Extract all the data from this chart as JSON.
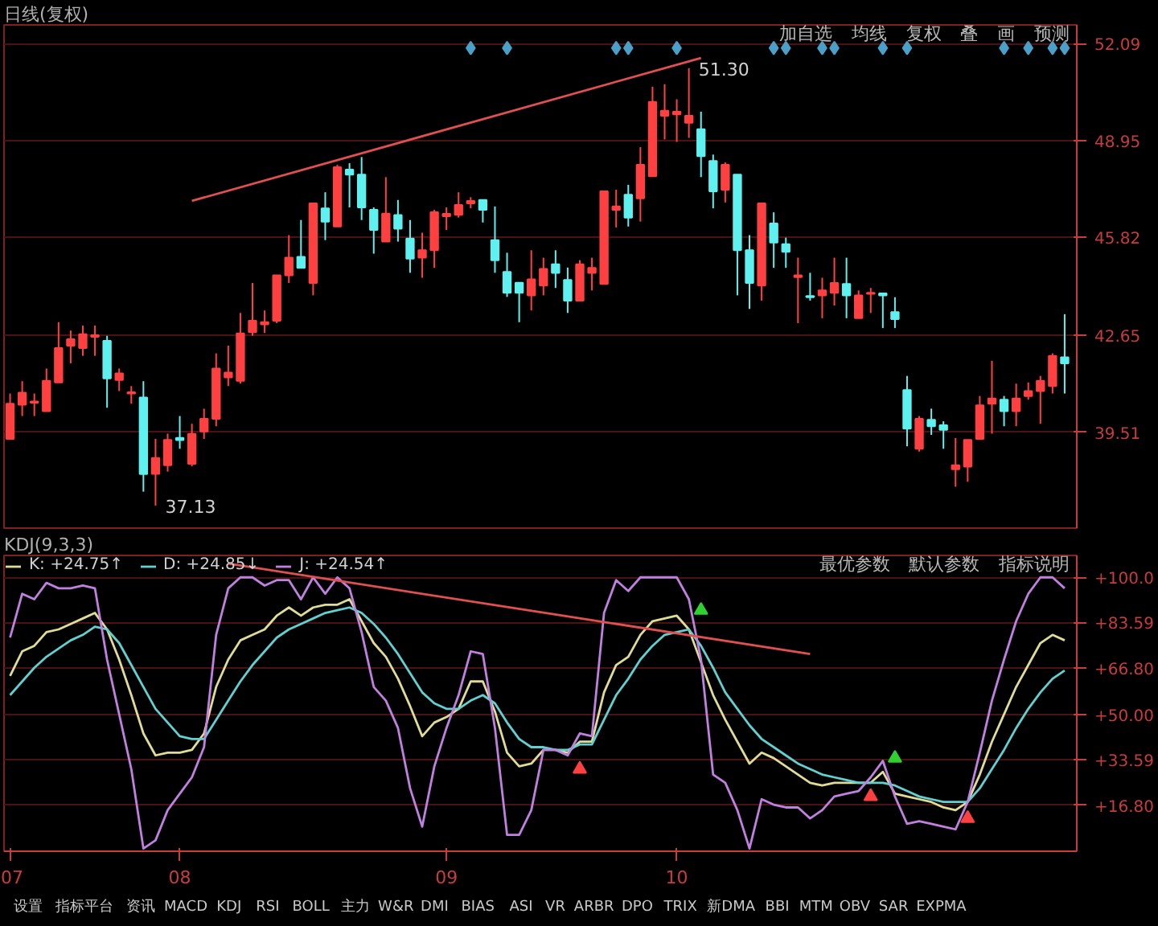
{
  "chart_data": [
    {
      "type": "candlestick",
      "title": "日线(复权)",
      "categories": [
        null,
        null,
        null,
        null,
        null,
        null,
        null,
        null,
        null,
        null,
        null,
        null,
        null,
        null,
        null,
        null,
        null,
        null,
        null,
        null,
        null,
        null,
        null,
        null,
        null,
        null,
        null,
        null,
        null,
        null,
        null,
        null,
        null,
        null,
        null,
        null,
        null,
        null,
        null,
        null,
        null,
        null,
        null,
        null,
        null,
        null,
        null,
        null,
        null,
        null,
        null,
        null,
        null,
        null,
        null,
        null,
        null,
        null,
        null,
        null,
        null,
        null,
        null,
        null,
        null,
        null,
        null,
        null,
        null,
        null,
        null,
        null,
        null,
        null,
        null,
        null,
        null,
        null,
        null,
        null,
        null,
        null,
        null,
        null,
        null,
        null,
        null,
        null
      ],
      "ohlc": [
        [
          39.29,
          40.76,
          39.29,
          40.43
        ],
        [
          40.4,
          41.16,
          40.03,
          40.79
        ],
        [
          40.46,
          40.76,
          40.03,
          40.5
        ],
        [
          40.19,
          41.57,
          40.19,
          41.17
        ],
        [
          41.12,
          43.07,
          41.12,
          42.23
        ],
        [
          42.31,
          42.8,
          41.74,
          42.52
        ],
        [
          42.23,
          42.96,
          41.98,
          42.68
        ],
        [
          42.6,
          42.96,
          41.98,
          42.65
        ],
        [
          42.47,
          42.63,
          40.3,
          41.25
        ],
        [
          41.2,
          41.57,
          40.84,
          41.41
        ],
        [
          40.76,
          41.0,
          40.43,
          40.8
        ],
        [
          40.63,
          41.16,
          37.58,
          38.15
        ],
        [
          38.16,
          39.29,
          37.13,
          38.67
        ],
        [
          38.44,
          39.46,
          38.23,
          39.26
        ],
        [
          39.32,
          40.03,
          38.97,
          39.25
        ],
        [
          38.48,
          39.78,
          38.4,
          39.45
        ],
        [
          39.53,
          40.27,
          39.29,
          39.94
        ],
        [
          39.94,
          42.06,
          39.7,
          41.57
        ],
        [
          41.28,
          42.31,
          41.0,
          41.44
        ],
        [
          41.17,
          43.37,
          41.08,
          42.71
        ],
        [
          42.75,
          44.34,
          42.63,
          43.12
        ],
        [
          43.0,
          43.45,
          42.72,
          43.07
        ],
        [
          43.12,
          44.59,
          43.04,
          44.59
        ],
        [
          44.59,
          45.89,
          44.34,
          45.16
        ],
        [
          45.19,
          46.38,
          44.83,
          44.83
        ],
        [
          44.34,
          46.92,
          43.94,
          46.92
        ],
        [
          46.76,
          47.28,
          45.73,
          46.33
        ],
        [
          46.17,
          48.17,
          46.17,
          48.09
        ],
        [
          48.01,
          48.22,
          46.79,
          47.85
        ],
        [
          47.85,
          48.42,
          46.38,
          46.79
        ],
        [
          46.71,
          46.79,
          45.29,
          46.06
        ],
        [
          45.68,
          47.77,
          45.68,
          46.59
        ],
        [
          46.54,
          47.03,
          45.68,
          46.1
        ],
        [
          45.78,
          46.38,
          44.67,
          45.13
        ],
        [
          45.16,
          45.97,
          44.51,
          45.4
        ],
        [
          45.4,
          46.71,
          44.83,
          46.63
        ],
        [
          46.5,
          46.79,
          46.06,
          46.58
        ],
        [
          46.55,
          47.28,
          46.46,
          46.87
        ],
        [
          46.92,
          47.12,
          46.76,
          47.0
        ],
        [
          47.03,
          47.03,
          46.3,
          46.71
        ],
        [
          45.73,
          46.82,
          44.67,
          45.08
        ],
        [
          44.7,
          45.32,
          43.89,
          44.02
        ],
        [
          44.35,
          44.35,
          43.07,
          44.02
        ],
        [
          43.94,
          45.4,
          43.45,
          44.46
        ],
        [
          44.26,
          45.16,
          43.94,
          44.8
        ],
        [
          44.95,
          45.4,
          44.18,
          44.67
        ],
        [
          44.44,
          44.84,
          43.37,
          43.77
        ],
        [
          43.77,
          45.08,
          43.77,
          44.95
        ],
        [
          44.67,
          45.16,
          44.1,
          44.83
        ],
        [
          44.31,
          47.31,
          44.31,
          47.31
        ],
        [
          46.71,
          47.36,
          46.14,
          46.82
        ],
        [
          47.2,
          47.52,
          46.17,
          46.46
        ],
        [
          47.08,
          48.74,
          46.33,
          48.17
        ],
        [
          47.8,
          50.7,
          47.8,
          50.21
        ],
        [
          49.76,
          50.78,
          48.99,
          49.92
        ],
        [
          49.8,
          50.29,
          48.91,
          49.89
        ],
        [
          49.53,
          51.3,
          49.04,
          49.76
        ],
        [
          49.32,
          49.89,
          47.77,
          48.45
        ],
        [
          48.29,
          48.5,
          46.76,
          47.31
        ],
        [
          47.36,
          48.25,
          46.95,
          48.17
        ],
        [
          47.85,
          47.85,
          43.94,
          45.4
        ],
        [
          45.4,
          45.89,
          43.5,
          44.34
        ],
        [
          44.26,
          46.92,
          43.77,
          46.92
        ],
        [
          46.27,
          46.63,
          44.83,
          45.65
        ],
        [
          45.6,
          45.81,
          44.83,
          45.35
        ],
        [
          44.53,
          45.16,
          43.04,
          44.59
        ],
        [
          43.92,
          44.67,
          43.77,
          43.88
        ],
        [
          43.94,
          44.51,
          43.2,
          44.1
        ],
        [
          44.02,
          45.16,
          43.61,
          44.34
        ],
        [
          44.31,
          45.16,
          43.2,
          43.94
        ],
        [
          43.2,
          44.1,
          43.2,
          43.94
        ],
        [
          43.99,
          44.18,
          43.37,
          44.02
        ],
        [
          44.0,
          44.02,
          42.88,
          43.94
        ],
        [
          43.4,
          43.88,
          42.88,
          43.17
        ],
        [
          40.87,
          41.33,
          39.05,
          39.62
        ],
        [
          38.97,
          40.03,
          38.88,
          39.94
        ],
        [
          39.91,
          40.27,
          39.42,
          39.7
        ],
        [
          39.73,
          39.86,
          38.97,
          39.58
        ],
        [
          38.31,
          39.32,
          37.74,
          38.44
        ],
        [
          38.39,
          39.26,
          37.9,
          39.26
        ],
        [
          39.29,
          40.68,
          39.29,
          40.38
        ],
        [
          40.43,
          41.82,
          39.46,
          40.6
        ],
        [
          40.56,
          40.68,
          39.7,
          40.19
        ],
        [
          40.19,
          41.08,
          39.7,
          40.6
        ],
        [
          40.68,
          41.12,
          40.56,
          40.84
        ],
        [
          40.84,
          41.33,
          39.78,
          41.17
        ],
        [
          41.0,
          42.06,
          40.76,
          41.98
        ],
        [
          41.93,
          43.33,
          40.76,
          41.74
        ]
      ],
      "colors": [
        "#ff4040",
        "#ff4040",
        "#ff4040",
        "#ff4040",
        "#ff4040",
        "#ff4040",
        "#ff4040",
        "#ff4040",
        "#5ff0f0",
        "#ff4040",
        "#ff4040",
        "#5ff0f0",
        "#ff4040",
        "#ff4040",
        "#5ff0f0",
        "#ff4040",
        "#ff4040",
        "#ff4040",
        "#ff4040",
        "#ff4040",
        "#ff4040",
        "#ff4040",
        "#ff4040",
        "#ff4040",
        "#5ff0f0",
        "#ff4040",
        "#5ff0f0",
        "#ff4040",
        "#5ff0f0",
        "#5ff0f0",
        "#5ff0f0",
        "#ff4040",
        "#5ff0f0",
        "#5ff0f0",
        "#ff4040",
        "#ff4040",
        "#ff4040",
        "#ff4040",
        "#ff4040",
        "#5ff0f0",
        "#5ff0f0",
        "#5ff0f0",
        "#5ff0f0",
        "#ff4040",
        "#ff4040",
        "#5ff0f0",
        "#5ff0f0",
        "#ff4040",
        "#ff4040",
        "#ff4040",
        "#ff4040",
        "#5ff0f0",
        "#ff4040",
        "#ff4040",
        "#ff4040",
        "#ff4040",
        "#ff4040",
        "#5ff0f0",
        "#5ff0f0",
        "#ff4040",
        "#5ff0f0",
        "#5ff0f0",
        "#ff4040",
        "#5ff0f0",
        "#5ff0f0",
        "#ff4040",
        "#5ff0f0",
        "#ff4040",
        "#ff4040",
        "#5ff0f0",
        "#ff4040",
        "#ff4040",
        "#5ff0f0",
        "#5ff0f0",
        "#5ff0f0",
        "#ff4040",
        "#5ff0f0",
        "#5ff0f0",
        "#ff4040",
        "#ff4040",
        "#ff4040",
        "#ff4040",
        "#5ff0f0",
        "#ff4040",
        "#ff4040",
        "#ff4040",
        "#ff4040",
        "#5ff0f0"
      ],
      "series": [
        {
          "type": "line",
          "color": "#e05050",
          "values": [
            null,
            null,
            null,
            null,
            null,
            null,
            null,
            null,
            null,
            null,
            null,
            null,
            null,
            null,
            null,
            47.0,
            null,
            null,
            null,
            null,
            null,
            null,
            null,
            null,
            null,
            null,
            null,
            null,
            null,
            null,
            null,
            null,
            null,
            null,
            null,
            null,
            null,
            null,
            null,
            null,
            null,
            null,
            null,
            null,
            null,
            null,
            null,
            null,
            null,
            null,
            null,
            null,
            null,
            null,
            null,
            null,
            null,
            51.63,
            null,
            null,
            null,
            null,
            null,
            null,
            null,
            null,
            null,
            null,
            null,
            null,
            null,
            null,
            null,
            null,
            null,
            null,
            null,
            null,
            null,
            null,
            null,
            null,
            null,
            null,
            null,
            null,
            null,
            null
          ]
        },
        {
          "type": "scatter",
          "marker": "diamond",
          "color": "#4aa0c8",
          "values": [
            null,
            null,
            null,
            null,
            null,
            null,
            null,
            null,
            null,
            null,
            null,
            null,
            null,
            null,
            null,
            null,
            null,
            null,
            null,
            null,
            null,
            null,
            null,
            null,
            null,
            null,
            null,
            null,
            null,
            null,
            null,
            null,
            null,
            null,
            null,
            null,
            null,
            null,
            51.95,
            null,
            null,
            51.95,
            null,
            null,
            null,
            null,
            null,
            null,
            null,
            null,
            51.95,
            51.95,
            null,
            null,
            null,
            51.95,
            null,
            null,
            null,
            null,
            null,
            null,
            null,
            51.95,
            51.95,
            null,
            null,
            51.95,
            51.95,
            null,
            null,
            null,
            51.95,
            null,
            51.95,
            null,
            null,
            null,
            null,
            null,
            null,
            null,
            51.95,
            null,
            51.95,
            null,
            51.95,
            51.95
          ]
        }
      ],
      "ylim": [
        36.4,
        52.7
      ],
      "yticks": [
        39.51,
        42.65,
        45.82,
        48.95,
        52.09
      ],
      "grid": "y",
      "tick_labels": "y",
      "annotations": [
        "51.30",
        "37.13",
        "加自选",
        "均线",
        "复权",
        "叠",
        "画",
        "预测"
      ]
    },
    {
      "type": "line",
      "title": "KDJ(9,3,3)",
      "categories": [
        "07",
        null,
        null,
        null,
        null,
        null,
        null,
        null,
        null,
        null,
        null,
        null,
        null,
        null,
        "08",
        null,
        null,
        null,
        null,
        null,
        null,
        null,
        null,
        null,
        null,
        null,
        null,
        null,
        null,
        null,
        null,
        null,
        null,
        null,
        null,
        null,
        "09",
        null,
        null,
        null,
        null,
        null,
        null,
        null,
        null,
        null,
        null,
        null,
        null,
        null,
        null,
        null,
        null,
        null,
        null,
        "10",
        null,
        null,
        null,
        null,
        null,
        null,
        null,
        null,
        null,
        null,
        null,
        null,
        null,
        null,
        null,
        null,
        null,
        null,
        null,
        null,
        null,
        null,
        null,
        null,
        null,
        null,
        null,
        null,
        null,
        null,
        null,
        null
      ],
      "series": [
        {
          "name": "K: +24.75↑",
          "color": "#e0dc96",
          "values": [
            64,
            73,
            75,
            80,
            81,
            83,
            85,
            87,
            81,
            70,
            57,
            43,
            35,
            36,
            36,
            37,
            43,
            60,
            70,
            77,
            79,
            81,
            86,
            89,
            86,
            89,
            90,
            90,
            92,
            84,
            76,
            71,
            63,
            53,
            42,
            47,
            49,
            52,
            62,
            62,
            51,
            36,
            31,
            32,
            37,
            37,
            36,
            40,
            40,
            58,
            68,
            71,
            79,
            84,
            85,
            86,
            81,
            69,
            57,
            48,
            40,
            32,
            36,
            34,
            31,
            28,
            25,
            24,
            25,
            25,
            25,
            25,
            29,
            21,
            20,
            19,
            18,
            16,
            15,
            18,
            28,
            40,
            50,
            60,
            68,
            76,
            79,
            77
          ]
        },
        {
          "name": "D: +24.85↓",
          "color": "#60d0d0",
          "values": [
            57,
            62,
            67,
            71,
            74,
            77,
            79,
            82,
            81,
            76,
            68,
            60,
            52,
            47,
            42,
            41,
            41,
            48,
            55,
            62,
            68,
            73,
            78,
            81,
            83,
            85,
            87,
            88,
            89,
            87,
            83,
            78,
            72,
            65,
            58,
            54,
            52,
            52,
            55,
            57,
            54,
            47,
            41,
            38,
            38,
            37,
            37,
            39,
            39,
            48,
            57,
            63,
            70,
            75,
            79,
            80,
            81,
            75,
            67,
            58,
            52,
            46,
            41,
            38,
            35,
            32,
            30,
            28,
            27,
            26,
            25,
            25,
            25,
            24,
            22,
            20,
            19,
            18,
            18,
            18,
            23,
            30,
            37,
            45,
            52,
            58,
            63,
            66
          ]
        },
        {
          "name": "J: +24.54↑",
          "color": "#c080e0",
          "values": [
            78,
            94,
            92,
            98,
            96,
            96,
            97,
            96,
            70,
            50,
            30,
            1,
            4,
            15,
            21,
            27,
            38,
            79,
            96,
            100,
            100,
            97,
            99,
            99,
            92,
            100,
            94,
            100,
            96,
            80,
            60,
            55,
            45,
            23,
            9,
            31,
            45,
            57,
            73,
            72,
            45,
            6,
            6,
            15,
            37,
            37,
            35,
            43,
            42,
            87,
            99,
            95,
            100,
            100,
            100,
            100,
            92,
            70,
            28,
            25,
            15,
            1,
            19,
            17,
            16,
            16,
            12,
            15,
            20,
            21,
            22,
            27,
            33,
            20,
            10,
            11,
            10,
            9,
            8,
            18,
            36,
            55,
            70,
            84,
            94,
            100,
            100,
            96
          ]
        },
        {
          "type": "line",
          "color": "#e05050",
          "values": [
            null,
            null,
            null,
            null,
            null,
            null,
            null,
            null,
            null,
            null,
            null,
            null,
            null,
            null,
            null,
            null,
            null,
            null,
            105,
            null,
            null,
            null,
            null,
            null,
            null,
            null,
            null,
            null,
            null,
            null,
            null,
            null,
            null,
            null,
            null,
            null,
            null,
            null,
            null,
            null,
            null,
            null,
            null,
            null,
            null,
            null,
            null,
            null,
            null,
            null,
            null,
            null,
            null,
            null,
            null,
            null,
            null,
            null,
            null,
            null,
            null,
            null,
            null,
            null,
            null,
            null,
            72,
            null,
            null,
            null,
            null,
            null,
            null,
            null,
            null,
            null,
            null,
            null,
            null,
            null,
            null,
            null,
            null,
            null,
            null,
            null,
            null,
            null
          ]
        },
        {
          "type": "scatter",
          "marker": "triangle",
          "color": "#ff4040",
          "values": [
            null,
            null,
            null,
            null,
            null,
            null,
            null,
            null,
            null,
            null,
            null,
            null,
            null,
            null,
            null,
            null,
            null,
            null,
            null,
            null,
            null,
            null,
            null,
            null,
            null,
            null,
            null,
            null,
            null,
            null,
            null,
            null,
            null,
            null,
            null,
            null,
            null,
            null,
            null,
            null,
            null,
            null,
            null,
            null,
            null,
            null,
            null,
            30,
            null,
            null,
            null,
            null,
            null,
            null,
            null,
            null,
            null,
            null,
            null,
            null,
            null,
            null,
            null,
            null,
            null,
            null,
            null,
            null,
            null,
            null,
            null,
            20,
            null,
            null,
            null,
            null,
            null,
            null,
            null,
            12,
            null,
            null,
            null,
            null,
            null,
            null,
            null,
            null
          ]
        },
        {
          "type": "scatter",
          "marker": "triangle",
          "color": "#30d030",
          "values": [
            null,
            null,
            null,
            null,
            null,
            null,
            null,
            null,
            null,
            null,
            null,
            null,
            null,
            null,
            null,
            null,
            null,
            null,
            null,
            null,
            null,
            null,
            null,
            null,
            null,
            null,
            null,
            null,
            null,
            null,
            null,
            null,
            null,
            null,
            null,
            null,
            null,
            null,
            null,
            null,
            null,
            null,
            null,
            null,
            null,
            null,
            null,
            null,
            null,
            null,
            null,
            null,
            null,
            null,
            null,
            null,
            null,
            88,
            null,
            null,
            null,
            null,
            null,
            null,
            null,
            null,
            null,
            null,
            null,
            null,
            null,
            null,
            null,
            34,
            null,
            null,
            null,
            null,
            null,
            null,
            null,
            null,
            null,
            null,
            null,
            null,
            null,
            null
          ]
        }
      ],
      "ylim": [
        0,
        108
      ],
      "yticks": [
        {
          "value": 16.8,
          "label": "+16.80"
        },
        {
          "value": 33.59,
          "label": "+33.59"
        },
        {
          "value": 50,
          "label": "+50.00"
        },
        {
          "value": 66.8,
          "label": "+66.80"
        },
        {
          "value": 83.59,
          "label": "+83.59"
        },
        {
          "value": 100,
          "label": "+100.0"
        }
      ],
      "grid": "y",
      "legend": "top left",
      "annotations": [
        "最优参数",
        "默认参数",
        "指标说明"
      ]
    },
    {
      "type": "other",
      "annotations": [
        "设置",
        "指标平台",
        "资讯",
        "MACD",
        "KDJ",
        "RSI",
        "BOLL",
        "主力",
        "W&R",
        "DMI",
        "BIAS",
        "ASI",
        "VR",
        "ARBR",
        "DPO",
        "TRIX",
        "新DMA",
        "BBI",
        "MTM",
        "OBV",
        "SAR",
        "EXPMA"
      ]
    }
  ]
}
